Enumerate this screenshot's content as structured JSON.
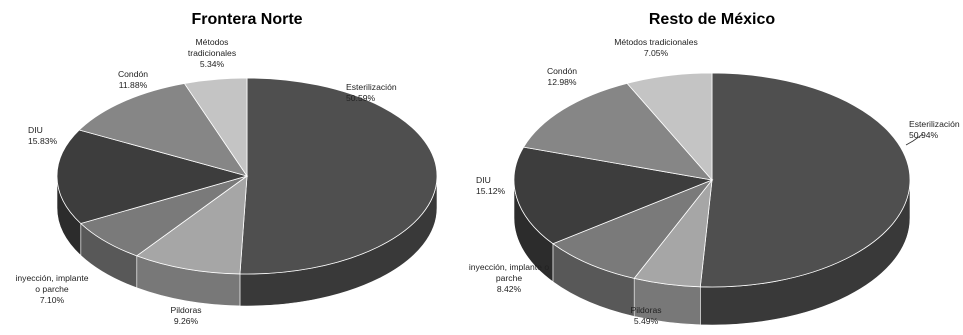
{
  "chart_data": [
    {
      "type": "pie",
      "title": "Frontera Norte",
      "slices": [
        {
          "label": "Esterilización",
          "value": 50.59,
          "display": "50.59%",
          "color": "#4f4f4f"
        },
        {
          "label": "Pildoras",
          "value": 9.26,
          "display": "9.26%",
          "color": "#a6a6a6"
        },
        {
          "label": "inyección, implante o parche",
          "value": 7.1,
          "display": "7.10%",
          "color": "#7a7a7a"
        },
        {
          "label": "DIU",
          "value": 15.83,
          "display": "15.83%",
          "color": "#3d3d3d"
        },
        {
          "label": "Condón",
          "value": 11.88,
          "display": "11.88%",
          "color": "#868686"
        },
        {
          "label": "Métodos tradicionales",
          "value": 5.34,
          "display": "5.34%",
          "color": "#c4c4c4"
        }
      ]
    },
    {
      "type": "pie",
      "title": "Resto de México",
      "slices": [
        {
          "label": "Esterilización",
          "value": 50.94,
          "display": "50.94%",
          "color": "#4f4f4f"
        },
        {
          "label": "Pildoras",
          "value": 5.49,
          "display": "5.49%",
          "color": "#a6a6a6"
        },
        {
          "label": "inyección, implante o parche",
          "value": 8.42,
          "display": "8.42%",
          "color": "#7a7a7a"
        },
        {
          "label": "DIU",
          "value": 15.12,
          "display": "15.12%",
          "color": "#3d3d3d"
        },
        {
          "label": "Condón",
          "value": 12.98,
          "display": "12.98%",
          "color": "#868686"
        },
        {
          "label": "Métodos tradicionales",
          "value": 7.05,
          "display": "7.05%",
          "color": "#c4c4c4"
        }
      ]
    }
  ]
}
